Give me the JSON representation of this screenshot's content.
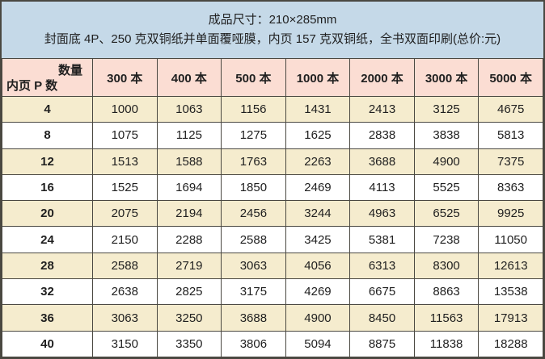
{
  "header": {
    "line1": "成品尺寸：210×285mm",
    "line2": "封面底 4P、250 克双铜纸并单面覆哑膜，内页 157 克双铜纸，全书双面印刷(总价:元)"
  },
  "table": {
    "corner": {
      "top_right": "数量",
      "bottom_left": "内页 P 数"
    },
    "columns": [
      "300 本",
      "400 本",
      "500 本",
      "1000 本",
      "2000 本",
      "3000 本",
      "5000 本"
    ],
    "rows": [
      {
        "pages": "4",
        "values": [
          "1000",
          "1063",
          "1156",
          "1431",
          "2413",
          "3125",
          "4675"
        ]
      },
      {
        "pages": "8",
        "values": [
          "1075",
          "1125",
          "1275",
          "1625",
          "2838",
          "3838",
          "5813"
        ]
      },
      {
        "pages": "12",
        "values": [
          "1513",
          "1588",
          "1763",
          "2263",
          "3688",
          "4900",
          "7375"
        ]
      },
      {
        "pages": "16",
        "values": [
          "1525",
          "1694",
          "1850",
          "2469",
          "4113",
          "5525",
          "8363"
        ]
      },
      {
        "pages": "20",
        "values": [
          "2075",
          "2194",
          "2456",
          "3244",
          "4963",
          "6525",
          "9925"
        ]
      },
      {
        "pages": "24",
        "values": [
          "2150",
          "2288",
          "2588",
          "3425",
          "5381",
          "7238",
          "11050"
        ]
      },
      {
        "pages": "28",
        "values": [
          "2588",
          "2719",
          "3063",
          "4056",
          "6313",
          "8300",
          "12613"
        ]
      },
      {
        "pages": "32",
        "values": [
          "2638",
          "2825",
          "3175",
          "4269",
          "6675",
          "8863",
          "13538"
        ]
      },
      {
        "pages": "36",
        "values": [
          "3063",
          "3250",
          "3688",
          "4900",
          "8450",
          "11563",
          "17913"
        ]
      },
      {
        "pages": "40",
        "values": [
          "3150",
          "3350",
          "3806",
          "5094",
          "8875",
          "11838",
          "18288"
        ]
      }
    ]
  },
  "colors": {
    "top_note_bg": "#c5d9e8",
    "column_header_bg": "#fbddd3",
    "row_alt_bg": "#f5ecce",
    "row_bg": "#ffffff",
    "border": "#4a4841",
    "text": "#1f1f1f"
  }
}
